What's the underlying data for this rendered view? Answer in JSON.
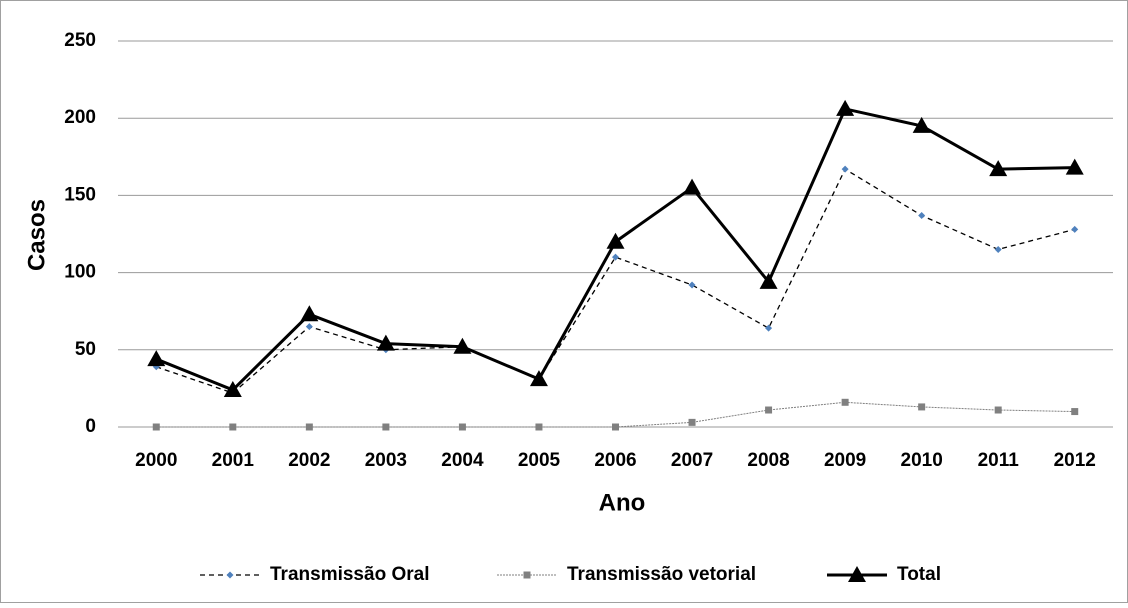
{
  "chart_data": {
    "type": "line",
    "x_label": "Ano",
    "y_label": "Casos",
    "categories": [
      "2000",
      "2001",
      "2002",
      "2003",
      "2004",
      "2005",
      "2006",
      "2007",
      "2008",
      "2009",
      "2010",
      "2011",
      "2012"
    ],
    "series": [
      {
        "name": "Transmissão Oral",
        "color": "#000000",
        "marker_color": "#4f81bd",
        "line_style": "dashed",
        "marker": "diamond",
        "values": [
          39,
          22,
          65,
          50,
          52,
          31,
          110,
          92,
          64,
          167,
          137,
          115,
          128
        ]
      },
      {
        "name": "Transmissão vetorial",
        "color": "#7f7f7f",
        "marker_color": "#808080",
        "line_style": "dotted",
        "marker": "square",
        "values": [
          0,
          0,
          0,
          0,
          0,
          0,
          0,
          3,
          11,
          16,
          13,
          11,
          10
        ]
      },
      {
        "name": "Total",
        "color": "#000000",
        "marker_color": "#000000",
        "line_style": "solid",
        "marker": "triangle",
        "values": [
          44,
          24,
          73,
          54,
          52,
          31,
          120,
          155,
          94,
          206,
          195,
          167,
          168
        ]
      }
    ],
    "ylim": [
      0,
      250
    ],
    "yticks": [
      0,
      50,
      100,
      150,
      200,
      250
    ],
    "grid": true,
    "legend": "bottom"
  }
}
